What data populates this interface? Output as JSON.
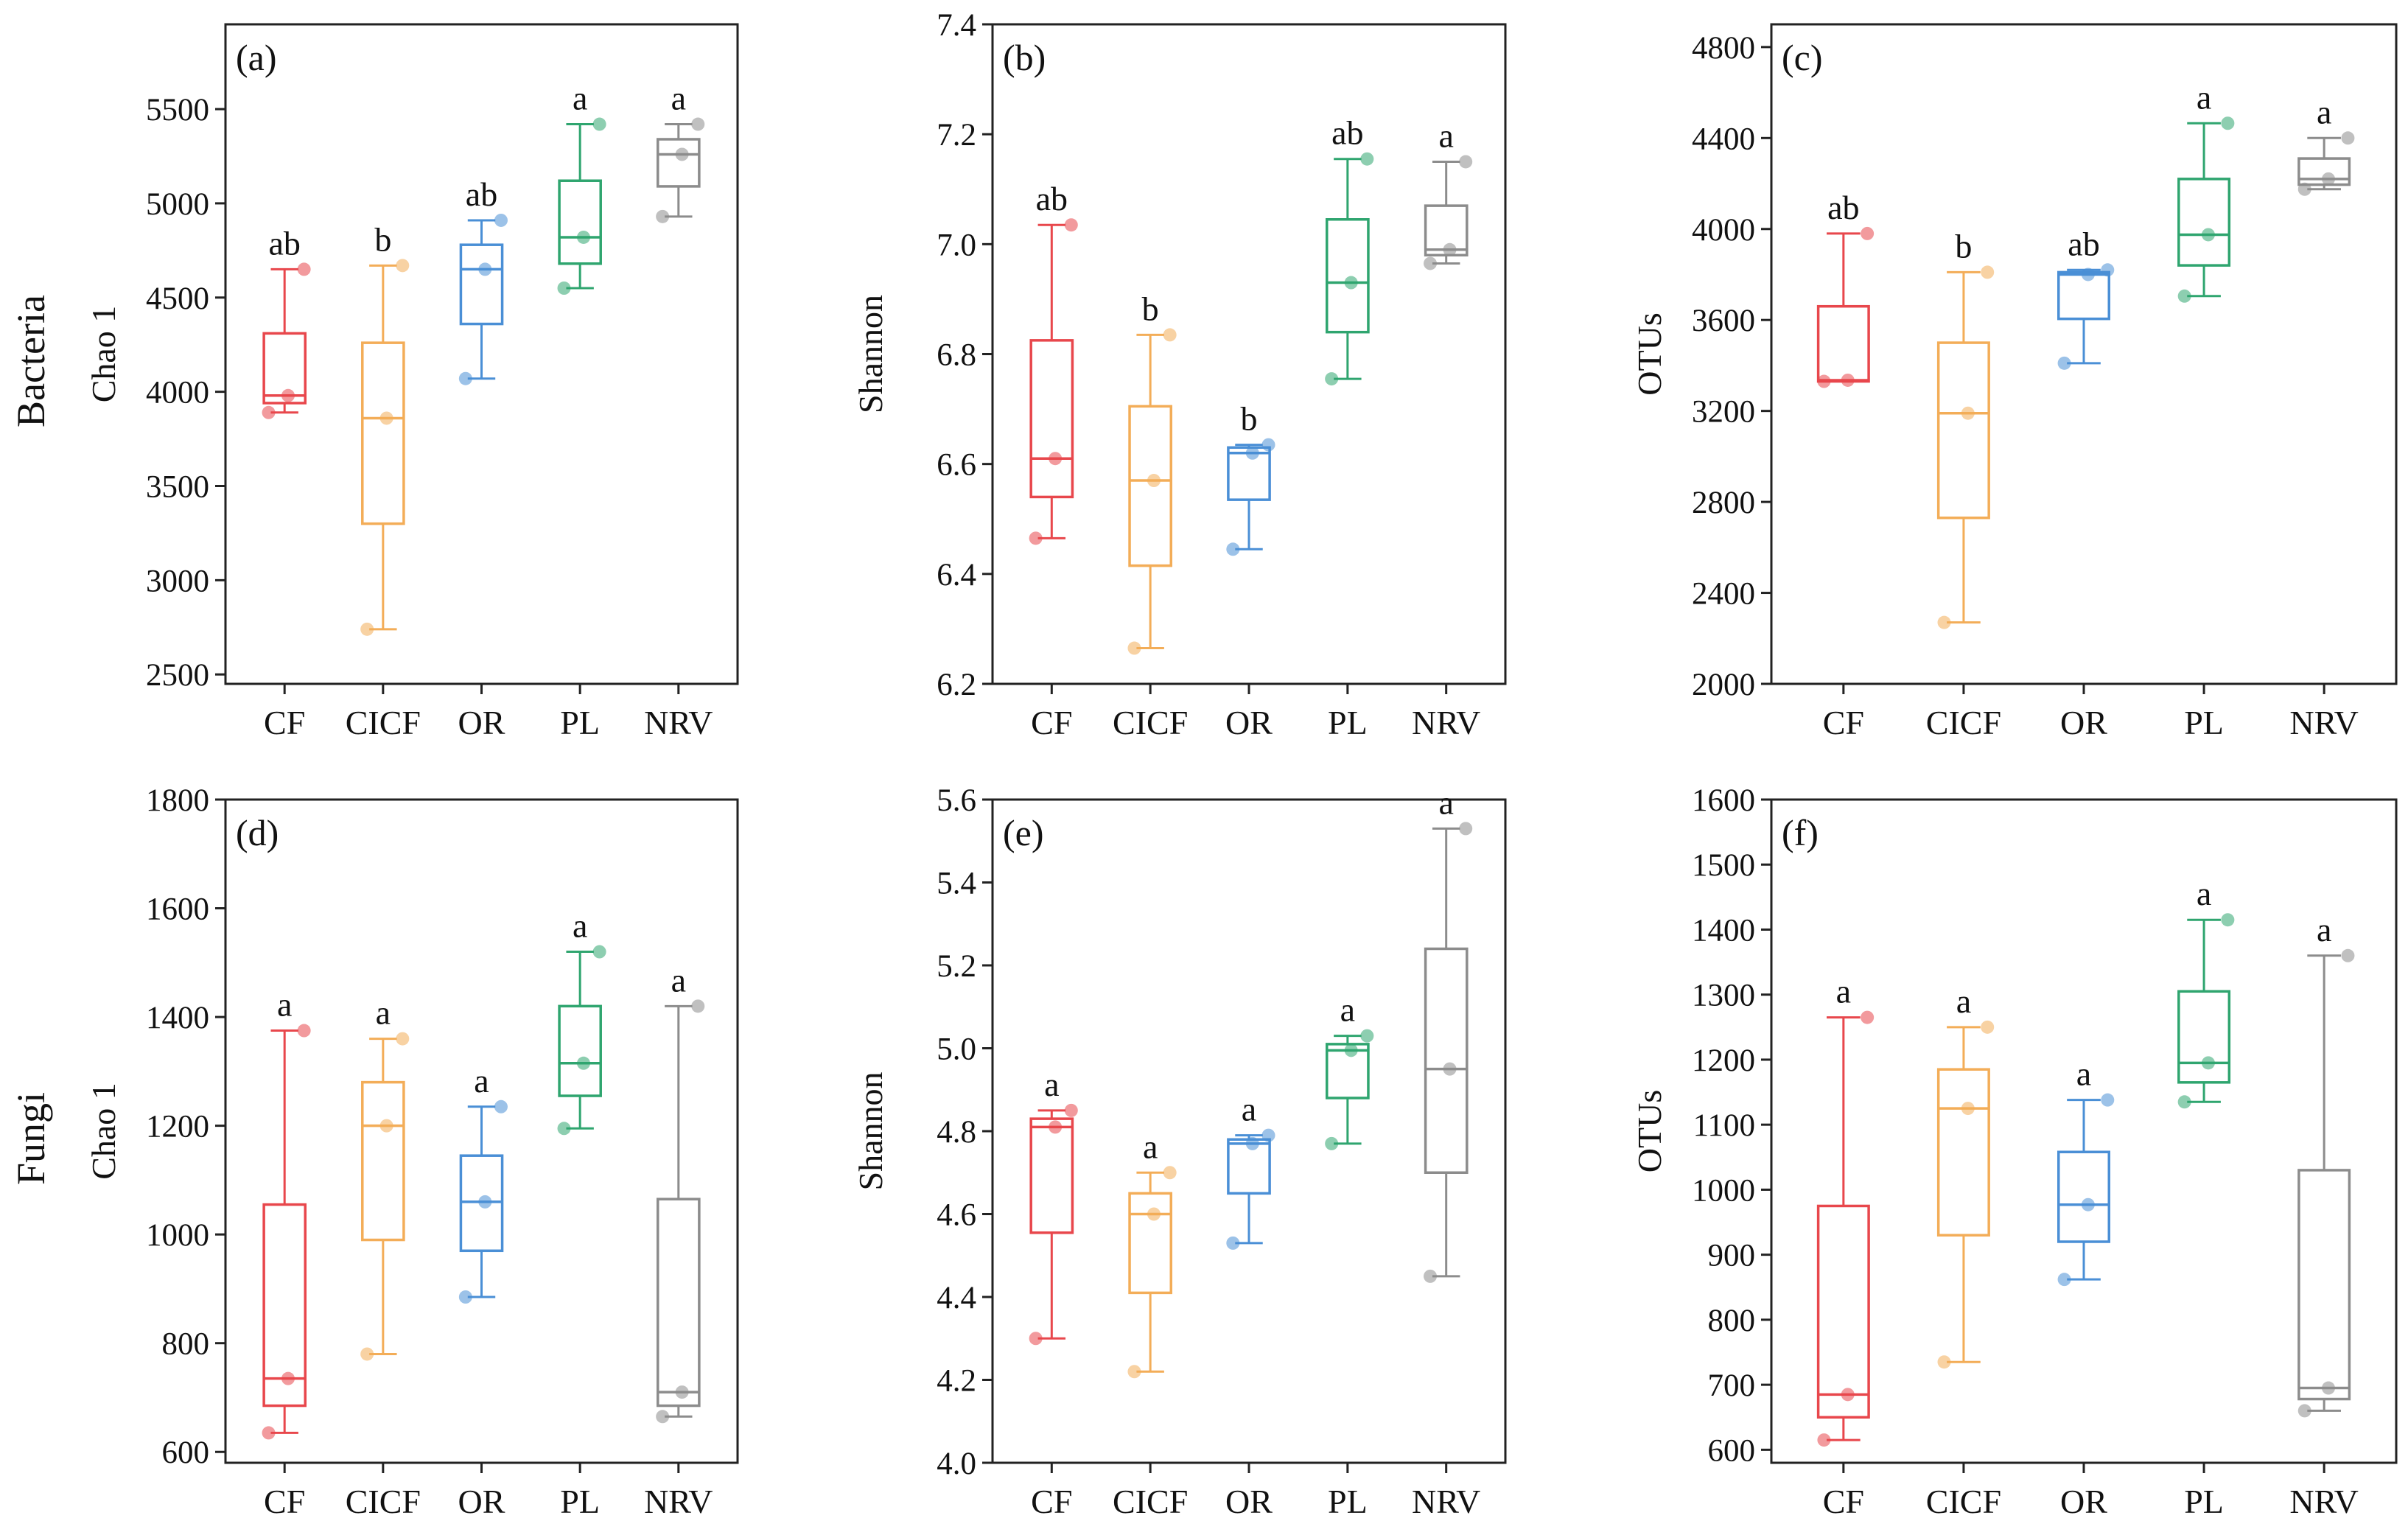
{
  "row_labels": [
    "Bacteria",
    "Fungi"
  ],
  "colors": {
    "CF": "#e8474c",
    "CICF": "#f3ad58",
    "OR": "#4a8fd6",
    "PL": "#2fa56f",
    "NRV": "#8c8c8c"
  },
  "chart_data": [
    {
      "type": "box",
      "panel": "(a)",
      "title": "",
      "xlabel": "",
      "ylabel": "Chao 1",
      "categories": [
        "CF",
        "CICF",
        "OR",
        "PL",
        "NRV"
      ],
      "ylim": [
        2450,
        5950
      ],
      "yticks": [
        2500,
        3000,
        3500,
        4000,
        4500,
        5000,
        5500
      ],
      "boxes": [
        {
          "min": 3890,
          "q1": 3940,
          "median": 3980,
          "q3": 4310,
          "max": 4650,
          "points": [
            3890,
            3980,
            4650
          ]
        },
        {
          "min": 2740,
          "q1": 3300,
          "median": 3860,
          "q3": 4260,
          "max": 4670,
          "points": [
            2740,
            3860,
            4670
          ]
        },
        {
          "min": 4070,
          "q1": 4360,
          "median": 4650,
          "q3": 4780,
          "max": 4910,
          "points": [
            4070,
            4650,
            4910
          ]
        },
        {
          "min": 4550,
          "q1": 4680,
          "median": 4820,
          "q3": 5120,
          "max": 5420,
          "points": [
            4550,
            4820,
            5420
          ]
        },
        {
          "min": 4930,
          "q1": 5090,
          "median": 5260,
          "q3": 5340,
          "max": 5420,
          "points": [
            4930,
            5260,
            5420
          ]
        }
      ],
      "significance": [
        "ab",
        "b",
        "ab",
        "a",
        "a"
      ]
    },
    {
      "type": "box",
      "panel": "(b)",
      "title": "",
      "xlabel": "",
      "ylabel": "Shannon",
      "categories": [
        "CF",
        "CICF",
        "OR",
        "PL",
        "NRV"
      ],
      "ylim": [
        6.2,
        7.4
      ],
      "yticks": [
        6.2,
        6.4,
        6.6,
        6.8,
        7.0,
        7.2,
        7.4
      ],
      "boxes": [
        {
          "min": 6.465,
          "q1": 6.54,
          "median": 6.61,
          "q3": 6.825,
          "max": 7.035,
          "points": [
            6.465,
            6.61,
            7.035
          ]
        },
        {
          "min": 6.265,
          "q1": 6.415,
          "median": 6.57,
          "q3": 6.705,
          "max": 6.835,
          "points": [
            6.265,
            6.57,
            6.835
          ]
        },
        {
          "min": 6.445,
          "q1": 6.535,
          "median": 6.62,
          "q3": 6.63,
          "max": 6.635,
          "points": [
            6.445,
            6.62,
            6.635
          ]
        },
        {
          "min": 6.755,
          "q1": 6.84,
          "median": 6.93,
          "q3": 7.045,
          "max": 7.155,
          "points": [
            6.755,
            6.93,
            7.155
          ]
        },
        {
          "min": 6.965,
          "q1": 6.98,
          "median": 6.99,
          "q3": 7.07,
          "max": 7.15,
          "points": [
            6.965,
            6.99,
            7.15
          ]
        }
      ],
      "significance": [
        "ab",
        "b",
        "b",
        "ab",
        "a"
      ]
    },
    {
      "type": "box",
      "panel": "(c)",
      "title": "",
      "xlabel": "",
      "ylabel": "OTUs",
      "categories": [
        "CF",
        "CICF",
        "OR",
        "PL",
        "NRV"
      ],
      "ylim": [
        2000,
        4900
      ],
      "yticks": [
        2000,
        2400,
        2800,
        3200,
        3600,
        4000,
        4400,
        4800
      ],
      "boxes": [
        {
          "min": 3330,
          "q1": 3330,
          "median": 3335,
          "q3": 3660,
          "max": 3980,
          "points": [
            3330,
            3335,
            3980
          ]
        },
        {
          "min": 2270,
          "q1": 2730,
          "median": 3190,
          "q3": 3500,
          "max": 3810,
          "points": [
            2270,
            3190,
            3810
          ]
        },
        {
          "min": 3410,
          "q1": 3605,
          "median": 3800,
          "q3": 3810,
          "max": 3820,
          "points": [
            3410,
            3800,
            3820
          ]
        },
        {
          "min": 3705,
          "q1": 3840,
          "median": 3975,
          "q3": 4220,
          "max": 4465,
          "points": [
            3705,
            3975,
            4465
          ]
        },
        {
          "min": 4175,
          "q1": 4195,
          "median": 4220,
          "q3": 4310,
          "max": 4400,
          "points": [
            4175,
            4220,
            4400
          ]
        }
      ],
      "significance": [
        "ab",
        "b",
        "ab",
        "a",
        "a"
      ]
    },
    {
      "type": "box",
      "panel": "(d)",
      "title": "",
      "xlabel": "",
      "ylabel": "Chao 1",
      "categories": [
        "CF",
        "CICF",
        "OR",
        "PL",
        "NRV"
      ],
      "ylim": [
        580,
        1800
      ],
      "yticks": [
        600,
        800,
        1000,
        1200,
        1400,
        1600,
        1800
      ],
      "boxes": [
        {
          "min": 635,
          "q1": 685,
          "median": 735,
          "q3": 1055,
          "max": 1375,
          "points": [
            635,
            735,
            1375
          ]
        },
        {
          "min": 780,
          "q1": 990,
          "median": 1200,
          "q3": 1280,
          "max": 1360,
          "points": [
            780,
            1200,
            1360
          ]
        },
        {
          "min": 885,
          "q1": 970,
          "median": 1060,
          "q3": 1145,
          "max": 1235,
          "points": [
            885,
            1060,
            1235
          ]
        },
        {
          "min": 1195,
          "q1": 1255,
          "median": 1315,
          "q3": 1420,
          "max": 1520,
          "points": [
            1195,
            1315,
            1520
          ]
        },
        {
          "min": 665,
          "q1": 685,
          "median": 710,
          "q3": 1065,
          "max": 1420,
          "points": [
            665,
            710,
            1420
          ]
        }
      ],
      "significance": [
        "a",
        "a",
        "a",
        "a",
        "a"
      ]
    },
    {
      "type": "box",
      "panel": "(e)",
      "title": "",
      "xlabel": "",
      "ylabel": "Shannon",
      "categories": [
        "CF",
        "CICF",
        "OR",
        "PL",
        "NRV"
      ],
      "ylim": [
        4.0,
        5.6
      ],
      "yticks": [
        4.0,
        4.2,
        4.4,
        4.6,
        4.8,
        5.0,
        5.2,
        5.4,
        5.6
      ],
      "boxes": [
        {
          "min": 4.3,
          "q1": 4.555,
          "median": 4.81,
          "q3": 4.83,
          "max": 4.85,
          "points": [
            4.3,
            4.81,
            4.85
          ]
        },
        {
          "min": 4.22,
          "q1": 4.41,
          "median": 4.6,
          "q3": 4.65,
          "max": 4.7,
          "points": [
            4.22,
            4.6,
            4.7
          ]
        },
        {
          "min": 4.53,
          "q1": 4.65,
          "median": 4.77,
          "q3": 4.78,
          "max": 4.79,
          "points": [
            4.53,
            4.77,
            4.79
          ]
        },
        {
          "min": 4.77,
          "q1": 4.88,
          "median": 4.995,
          "q3": 5.01,
          "max": 5.03,
          "points": [
            4.77,
            4.995,
            5.03
          ]
        },
        {
          "min": 4.45,
          "q1": 4.7,
          "median": 4.95,
          "q3": 5.24,
          "max": 5.53,
          "points": [
            4.45,
            4.95,
            5.53
          ]
        }
      ],
      "significance": [
        "a",
        "a",
        "a",
        "a",
        "a"
      ]
    },
    {
      "type": "box",
      "panel": "(f)",
      "title": "",
      "xlabel": "",
      "ylabel": "OTUs",
      "categories": [
        "CF",
        "CICF",
        "OR",
        "PL",
        "NRV"
      ],
      "ylim": [
        580,
        1600
      ],
      "yticks": [
        600,
        700,
        800,
        900,
        1000,
        1100,
        1200,
        1300,
        1400,
        1500,
        1600
      ],
      "boxes": [
        {
          "min": 615,
          "q1": 650,
          "median": 685,
          "q3": 975,
          "max": 1265,
          "points": [
            615,
            685,
            1265
          ]
        },
        {
          "min": 735,
          "q1": 930,
          "median": 1125,
          "q3": 1185,
          "max": 1250,
          "points": [
            735,
            1125,
            1250
          ]
        },
        {
          "min": 862,
          "q1": 920,
          "median": 977,
          "q3": 1058,
          "max": 1138,
          "points": [
            862,
            977,
            1138
          ]
        },
        {
          "min": 1135,
          "q1": 1165,
          "median": 1195,
          "q3": 1305,
          "max": 1415,
          "points": [
            1135,
            1195,
            1415
          ]
        },
        {
          "min": 660,
          "q1": 678,
          "median": 695,
          "q3": 1030,
          "max": 1360,
          "points": [
            660,
            695,
            1360
          ]
        }
      ],
      "significance": [
        "a",
        "a",
        "a",
        "a",
        "a"
      ]
    }
  ]
}
